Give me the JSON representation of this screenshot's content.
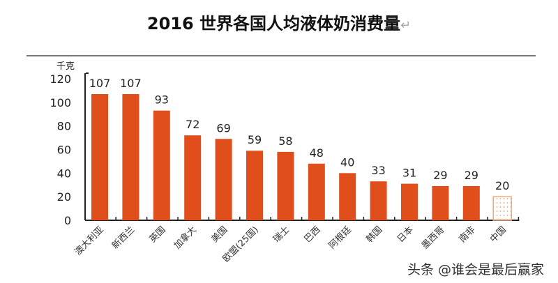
{
  "header": {
    "title": "2016 世界各国人均液体奶消费量",
    "return_mark": "↵"
  },
  "watermark": "头条 @谁会是最后赢家",
  "colors": {
    "bar": "#e04e1c",
    "bar_china_border": "#f0a878",
    "bar_china_dots": "#e8a070",
    "axis": "#222222"
  },
  "chart_data": {
    "type": "bar",
    "title": "2016 世界各国人均液体奶消费量",
    "xlabel": "",
    "ylabel": "千克",
    "ylim": [
      0,
      120
    ],
    "yticks": [
      0,
      20,
      40,
      60,
      80,
      100,
      120
    ],
    "grid": false,
    "legend": null,
    "categories": [
      "澳大利亚",
      "新西兰",
      "英国",
      "加拿大",
      "美国",
      "欧盟(25国)",
      "瑞士",
      "巴西",
      "阿根廷",
      "韩国",
      "日本",
      "墨西哥",
      "南非",
      "中国"
    ],
    "values": [
      107,
      107,
      93,
      72,
      69,
      59,
      58,
      48,
      40,
      33,
      31,
      29,
      29,
      20
    ],
    "highlight": {
      "category": "中国",
      "style": "dotted-outline"
    }
  }
}
